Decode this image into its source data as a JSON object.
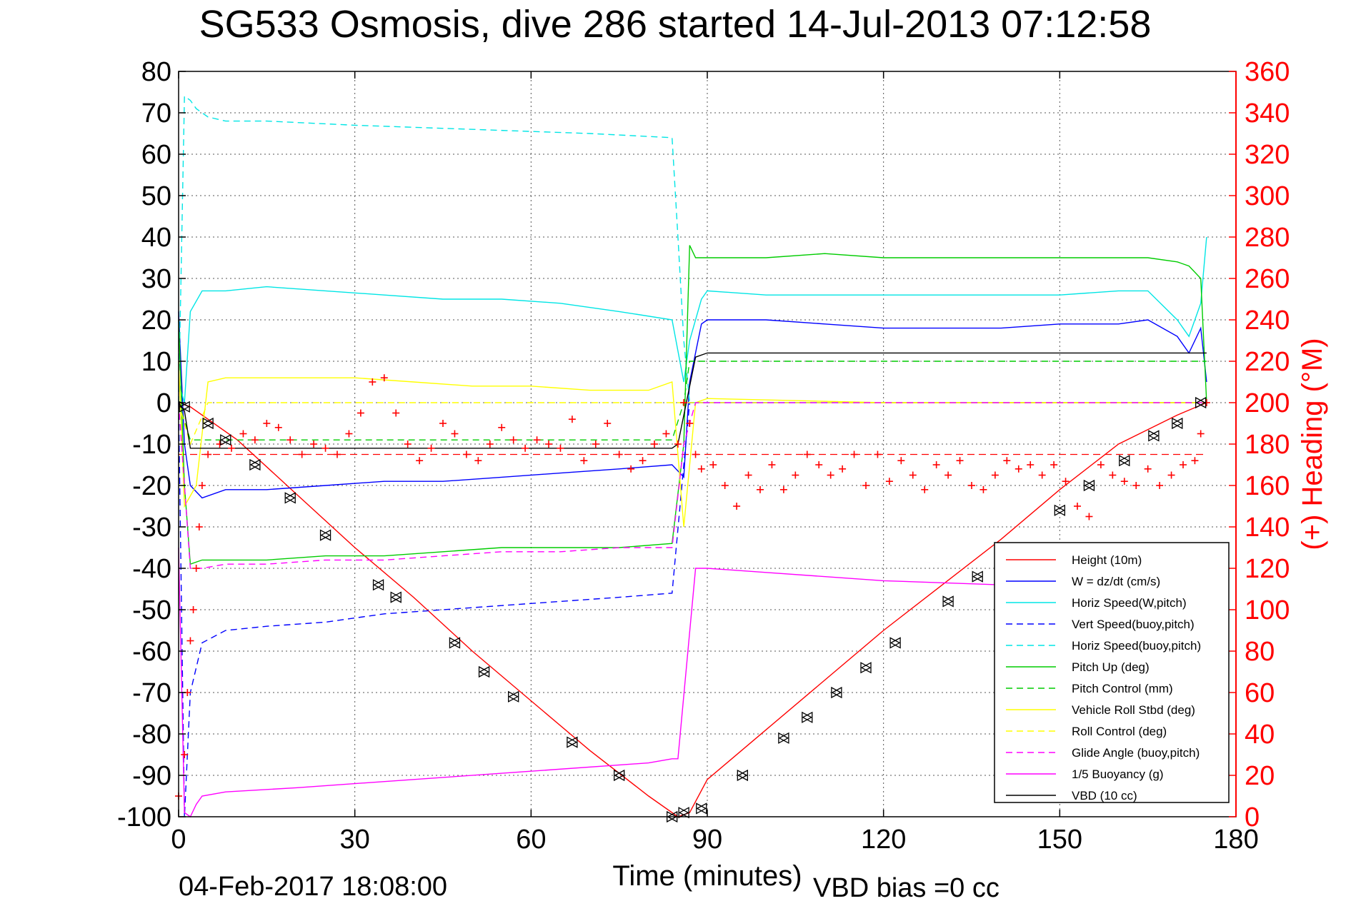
{
  "chart_data": {
    "type": "line",
    "title": "SG533 Osmosis, dive 286 started 14-Jul-2013 07:12:58",
    "xlabel": "Time (minutes)",
    "ylabel_right": "(+) Heading (°M)",
    "footer_left": "04-Feb-2017 18:08:00",
    "footer_right": "VBD bias =0 cc",
    "xlim": [
      0,
      180
    ],
    "ylim": [
      -100,
      80
    ],
    "ylim_right": [
      0,
      360
    ],
    "x_ticks": [
      "0",
      "30",
      "60",
      "90",
      "120",
      "150",
      "180"
    ],
    "y_ticks": [
      "80",
      "70",
      "60",
      "50",
      "40",
      "30",
      "20",
      "10",
      "0",
      "-10",
      "-20",
      "-30",
      "-40",
      "-50",
      "-60",
      "-70",
      "-80",
      "-90",
      "-100"
    ],
    "y_ticks_right": [
      "360",
      "340",
      "320",
      "300",
      "280",
      "260",
      "240",
      "220",
      "200",
      "180",
      "160",
      "140",
      "120",
      "100",
      "80",
      "60",
      "40",
      "20",
      "0"
    ],
    "grid": true,
    "legend_position": "bottom-right",
    "series": [
      {
        "name": "Height (10m)",
        "color": "#ff0000",
        "style": "solid",
        "x": [
          0,
          2,
          10,
          20,
          30,
          40,
          50,
          60,
          70,
          80,
          85,
          87,
          90,
          100,
          110,
          120,
          130,
          140,
          150,
          160,
          170,
          175
        ],
        "y": [
          0,
          -1,
          -9,
          -22,
          -35,
          -47,
          -60,
          -72,
          -84,
          -95,
          -100,
          -99,
          -91,
          -79,
          -67,
          -55,
          -44,
          -33,
          -21,
          -10,
          -3,
          0
        ]
      },
      {
        "name": "W = dz/dt (cm/s)",
        "color": "#0000ff",
        "style": "solid",
        "x": [
          0,
          1,
          2,
          4,
          8,
          15,
          25,
          35,
          45,
          55,
          65,
          75,
          84,
          86,
          87,
          89,
          90,
          100,
          110,
          120,
          130,
          140,
          150,
          160,
          165,
          170,
          172,
          174,
          175
        ],
        "y": [
          22,
          -10,
          -20,
          -23,
          -21,
          -21,
          -20,
          -19,
          -19,
          -18,
          -17,
          -16,
          -15,
          -18,
          5,
          19,
          20,
          20,
          19,
          18,
          18,
          18,
          19,
          19,
          20,
          16,
          12,
          18,
          5
        ]
      },
      {
        "name": "Horiz Speed(W,pitch)",
        "color": "#00e5e5",
        "style": "solid",
        "x": [
          0,
          1,
          2,
          4,
          8,
          15,
          25,
          35,
          45,
          55,
          65,
          75,
          84,
          86,
          87,
          89,
          90,
          100,
          110,
          120,
          130,
          140,
          150,
          160,
          165,
          170,
          172,
          174,
          175
        ],
        "y": [
          5,
          0,
          22,
          27,
          27,
          28,
          27,
          26,
          25,
          25,
          24,
          22,
          20,
          5,
          15,
          25,
          27,
          26,
          26,
          26,
          26,
          26,
          26,
          27,
          27,
          20,
          16,
          24,
          40
        ]
      },
      {
        "name": "Vert Speed(buoy,pitch)",
        "color": "#0000ff",
        "style": "dashed",
        "x": [
          0,
          1,
          2,
          4,
          8,
          15,
          25,
          35,
          45,
          55,
          65,
          75,
          84,
          86,
          87,
          89,
          90,
          120,
          150,
          175
        ],
        "y": [
          0,
          -100,
          -70,
          -58,
          -55,
          -54,
          -53,
          -51,
          -50,
          -49,
          -48,
          -47,
          -46,
          -15,
          0,
          0,
          0,
          0,
          0,
          0
        ]
      },
      {
        "name": "Horiz Speed(buoy,pitch)",
        "color": "#00e5e5",
        "style": "dashed",
        "x": [
          0,
          1,
          2,
          3,
          5,
          8,
          15,
          30,
          50,
          70,
          84,
          85,
          86,
          87,
          89,
          90,
          120,
          150,
          175
        ],
        "y": [
          0,
          74,
          73,
          71,
          69,
          68,
          68,
          67,
          66,
          65,
          64,
          40,
          15,
          0,
          0,
          0,
          0,
          0,
          0
        ]
      },
      {
        "name": "Pitch Up (deg)",
        "color": "#00cc00",
        "style": "solid",
        "x": [
          0,
          1,
          2,
          4,
          8,
          15,
          25,
          35,
          45,
          55,
          65,
          75,
          84,
          86,
          87,
          88,
          90,
          100,
          110,
          120,
          130,
          140,
          150,
          160,
          165,
          170,
          172,
          174,
          175
        ],
        "y": [
          20,
          -20,
          -39,
          -38,
          -38,
          -38,
          -37,
          -37,
          -36,
          -35,
          -35,
          -35,
          -34,
          -10,
          38,
          35,
          35,
          35,
          36,
          35,
          35,
          35,
          35,
          35,
          35,
          34,
          33,
          30,
          0
        ]
      },
      {
        "name": "Pitch Control (mm)",
        "color": "#00cc00",
        "style": "dashed",
        "x": [
          0,
          2,
          5,
          10,
          84,
          86,
          87,
          175
        ],
        "y": [
          0,
          -9,
          -9,
          -9,
          -9,
          0,
          10,
          10
        ]
      },
      {
        "name": "Vehicle Roll Stbd (deg)",
        "color": "#ffff00",
        "style": "solid",
        "x": [
          0,
          1,
          3,
          5,
          8,
          20,
          30,
          40,
          50,
          60,
          70,
          80,
          84,
          86,
          88,
          90,
          120,
          150,
          175
        ],
        "y": [
          10,
          -25,
          -20,
          5,
          6,
          6,
          6,
          5,
          4,
          4,
          3,
          3,
          5,
          -30,
          0,
          1,
          0,
          0,
          0
        ]
      },
      {
        "name": "Roll Control (deg)",
        "color": "#ffff00",
        "style": "dashed",
        "x": [
          0,
          2,
          5,
          84,
          86,
          88,
          175
        ],
        "y": [
          0,
          -10,
          0,
          0,
          0,
          0,
          0
        ]
      },
      {
        "name": "Glide Angle (buoy,pitch)",
        "color": "#ff00ff",
        "style": "dashed",
        "x": [
          0,
          2,
          4,
          8,
          15,
          25,
          35,
          45,
          55,
          65,
          75,
          84,
          86,
          88,
          90,
          120,
          150,
          175
        ],
        "y": [
          0,
          -40,
          -40,
          -39,
          -39,
          -38,
          -38,
          -37,
          -36,
          -36,
          -35,
          -35,
          -10,
          0,
          0,
          0,
          0,
          0
        ]
      },
      {
        "name": "1/5 Buoyancy (g)",
        "color": "#ff00ff",
        "style": "solid",
        "x": [
          0,
          1,
          2,
          3,
          4,
          8,
          20,
          40,
          60,
          80,
          84,
          85,
          88,
          90,
          100,
          120,
          140,
          150
        ],
        "y": [
          -35,
          -99,
          -100,
          -97,
          -95,
          -94,
          -93,
          -91,
          -89,
          -87,
          -86,
          -86,
          -40,
          -40,
          -41,
          -43,
          -44,
          -45
        ]
      },
      {
        "name": "VBD (10 cc)",
        "color": "#000000",
        "style": "solid",
        "x": [
          0,
          1,
          2,
          84,
          85,
          88,
          90,
          175
        ],
        "y": [
          0,
          -2,
          -11,
          -11,
          -10,
          11,
          12,
          12
        ]
      }
    ],
    "reference_lines": [
      {
        "color": "#ff0000",
        "style": "dashed",
        "y_right": 175,
        "x": [
          0,
          175
        ]
      }
    ],
    "heading_marker": {
      "symbol": "+",
      "color": "#ff0000",
      "axis": "right",
      "points": [
        [
          0,
          10
        ],
        [
          1,
          30
        ],
        [
          1.5,
          60
        ],
        [
          2,
          85
        ],
        [
          2.5,
          100
        ],
        [
          3,
          120
        ],
        [
          3.5,
          140
        ],
        [
          4,
          160
        ],
        [
          5,
          175
        ],
        [
          7,
          180
        ],
        [
          9,
          178
        ],
        [
          11,
          185
        ],
        [
          13,
          182
        ],
        [
          15,
          190
        ],
        [
          17,
          188
        ],
        [
          19,
          182
        ],
        [
          21,
          175
        ],
        [
          23,
          180
        ],
        [
          25,
          178
        ],
        [
          27,
          175
        ],
        [
          29,
          185
        ],
        [
          31,
          195
        ],
        [
          33,
          210
        ],
        [
          35,
          212
        ],
        [
          37,
          195
        ],
        [
          39,
          180
        ],
        [
          41,
          172
        ],
        [
          43,
          178
        ],
        [
          45,
          190
        ],
        [
          47,
          185
        ],
        [
          49,
          175
        ],
        [
          51,
          172
        ],
        [
          53,
          180
        ],
        [
          55,
          188
        ],
        [
          57,
          182
        ],
        [
          59,
          178
        ],
        [
          61,
          182
        ],
        [
          63,
          180
        ],
        [
          65,
          178
        ],
        [
          67,
          192
        ],
        [
          69,
          172
        ],
        [
          71,
          180
        ],
        [
          73,
          190
        ],
        [
          75,
          175
        ],
        [
          77,
          168
        ],
        [
          79,
          172
        ],
        [
          81,
          180
        ],
        [
          83,
          185
        ],
        [
          85,
          180
        ],
        [
          86,
          200
        ],
        [
          87,
          190
        ],
        [
          88,
          175
        ],
        [
          89,
          168
        ],
        [
          91,
          170
        ],
        [
          93,
          160
        ],
        [
          95,
          150
        ],
        [
          97,
          165
        ],
        [
          99,
          158
        ],
        [
          101,
          170
        ],
        [
          103,
          158
        ],
        [
          105,
          165
        ],
        [
          107,
          175
        ],
        [
          109,
          170
        ],
        [
          111,
          165
        ],
        [
          113,
          168
        ],
        [
          115,
          175
        ],
        [
          117,
          160
        ],
        [
          119,
          175
        ],
        [
          121,
          162
        ],
        [
          123,
          172
        ],
        [
          125,
          165
        ],
        [
          127,
          158
        ],
        [
          129,
          170
        ],
        [
          131,
          165
        ],
        [
          133,
          172
        ],
        [
          135,
          160
        ],
        [
          137,
          158
        ],
        [
          139,
          165
        ],
        [
          141,
          172
        ],
        [
          143,
          168
        ],
        [
          145,
          170
        ],
        [
          147,
          165
        ],
        [
          149,
          170
        ],
        [
          151,
          162
        ],
        [
          153,
          150
        ],
        [
          155,
          145
        ],
        [
          157,
          170
        ],
        [
          159,
          165
        ],
        [
          161,
          162
        ],
        [
          163,
          160
        ],
        [
          165,
          168
        ],
        [
          167,
          160
        ],
        [
          169,
          165
        ],
        [
          171,
          170
        ],
        [
          173,
          172
        ],
        [
          174,
          185
        ],
        [
          175,
          200
        ]
      ]
    },
    "depth_markers": {
      "color": "#000000",
      "points": [
        [
          1,
          -1
        ],
        [
          5,
          -5
        ],
        [
          8,
          -9
        ],
        [
          13,
          -15
        ],
        [
          19,
          -23
        ],
        [
          25,
          -32
        ],
        [
          34,
          -44
        ],
        [
          37,
          -47
        ],
        [
          47,
          -58
        ],
        [
          52,
          -65
        ],
        [
          57,
          -71
        ],
        [
          67,
          -82
        ],
        [
          75,
          -90
        ],
        [
          84,
          -100
        ],
        [
          86,
          -99
        ],
        [
          89,
          -98
        ],
        [
          96,
          -90
        ],
        [
          103,
          -81
        ],
        [
          107,
          -76
        ],
        [
          112,
          -70
        ],
        [
          117,
          -64
        ],
        [
          122,
          -58
        ],
        [
          131,
          -48
        ],
        [
          136,
          -42
        ],
        [
          150,
          -26
        ],
        [
          155,
          -20
        ],
        [
          161,
          -14
        ],
        [
          166,
          -8
        ],
        [
          170,
          -5
        ],
        [
          174,
          0
        ]
      ]
    }
  }
}
